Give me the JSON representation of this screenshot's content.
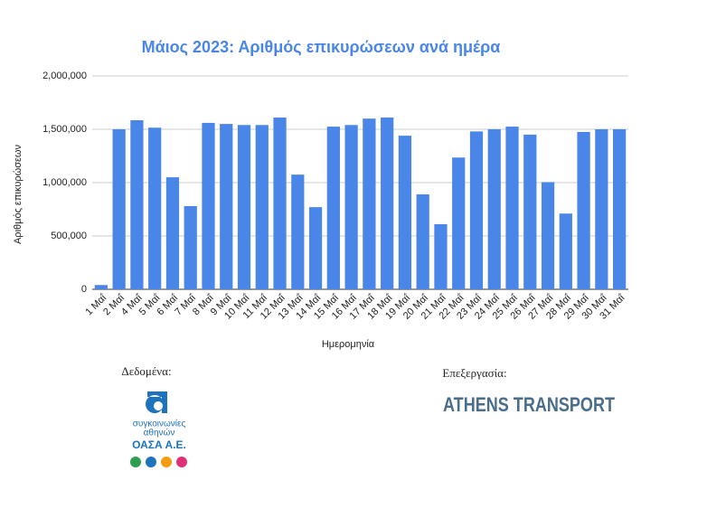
{
  "chart_data": {
    "type": "bar",
    "title": "Μάιος 2023: Αριθμός επικυρώσεων ανά ημέρα",
    "x_label": "Ημερομηνία",
    "y_label": "Αριθμός επικυρώσεων",
    "categories": [
      "1 Μαΐ",
      "2 Μαΐ",
      "4 Μαΐ",
      "5 Μαΐ",
      "6 Μαΐ",
      "7 Μαΐ",
      "8 Μαΐ",
      "9 Μαΐ",
      "10 Μαΐ",
      "11 Μαΐ",
      "12 Μαΐ",
      "13 Μαΐ",
      "14 Μαΐ",
      "15 Μαΐ",
      "16 Μαΐ",
      "17 Μαΐ",
      "18 Μαΐ",
      "19 Μαΐ",
      "20 Μαΐ",
      "21 Μαΐ",
      "22 Μαΐ",
      "23 Μαΐ",
      "24 Μαΐ",
      "25 Μαΐ",
      "26 Μαΐ",
      "27 Μαΐ",
      "28 Μαΐ",
      "29 Μαΐ",
      "30 Μαΐ",
      "31 Μαΐ"
    ],
    "values": [
      40000,
      1500000,
      1585000,
      1515000,
      1050000,
      780000,
      1560000,
      1550000,
      1540000,
      1540000,
      1610000,
      1075000,
      770000,
      1525000,
      1540000,
      1600000,
      1610000,
      1440000,
      890000,
      610000,
      1235000,
      1480000,
      1500000,
      1525000,
      1450000,
      1005000,
      710000,
      1475000,
      1500000,
      1500000
    ],
    "color": "#4a86e8",
    "ylim": [
      0,
      2000000
    ],
    "yticks": [
      0,
      {
        "value": 500000,
        "label": "500,000"
      },
      {
        "value": 1000000,
        "label": "1,000,000"
      },
      {
        "value": 1500000,
        "label": "1,500,000"
      },
      {
        "value": 2000000,
        "label": "2,000,000"
      }
    ],
    "grid": true
  },
  "footer": {
    "source_label": "Δεδομένα:",
    "source_line1": "συγκοινωνίες",
    "source_line2": "αθηνών",
    "source_name": "ΟΑΣΑ Α.Ε.",
    "processing_label": "Επεξεργασία:",
    "processing_name": "ATHENS TRANSPORT"
  }
}
